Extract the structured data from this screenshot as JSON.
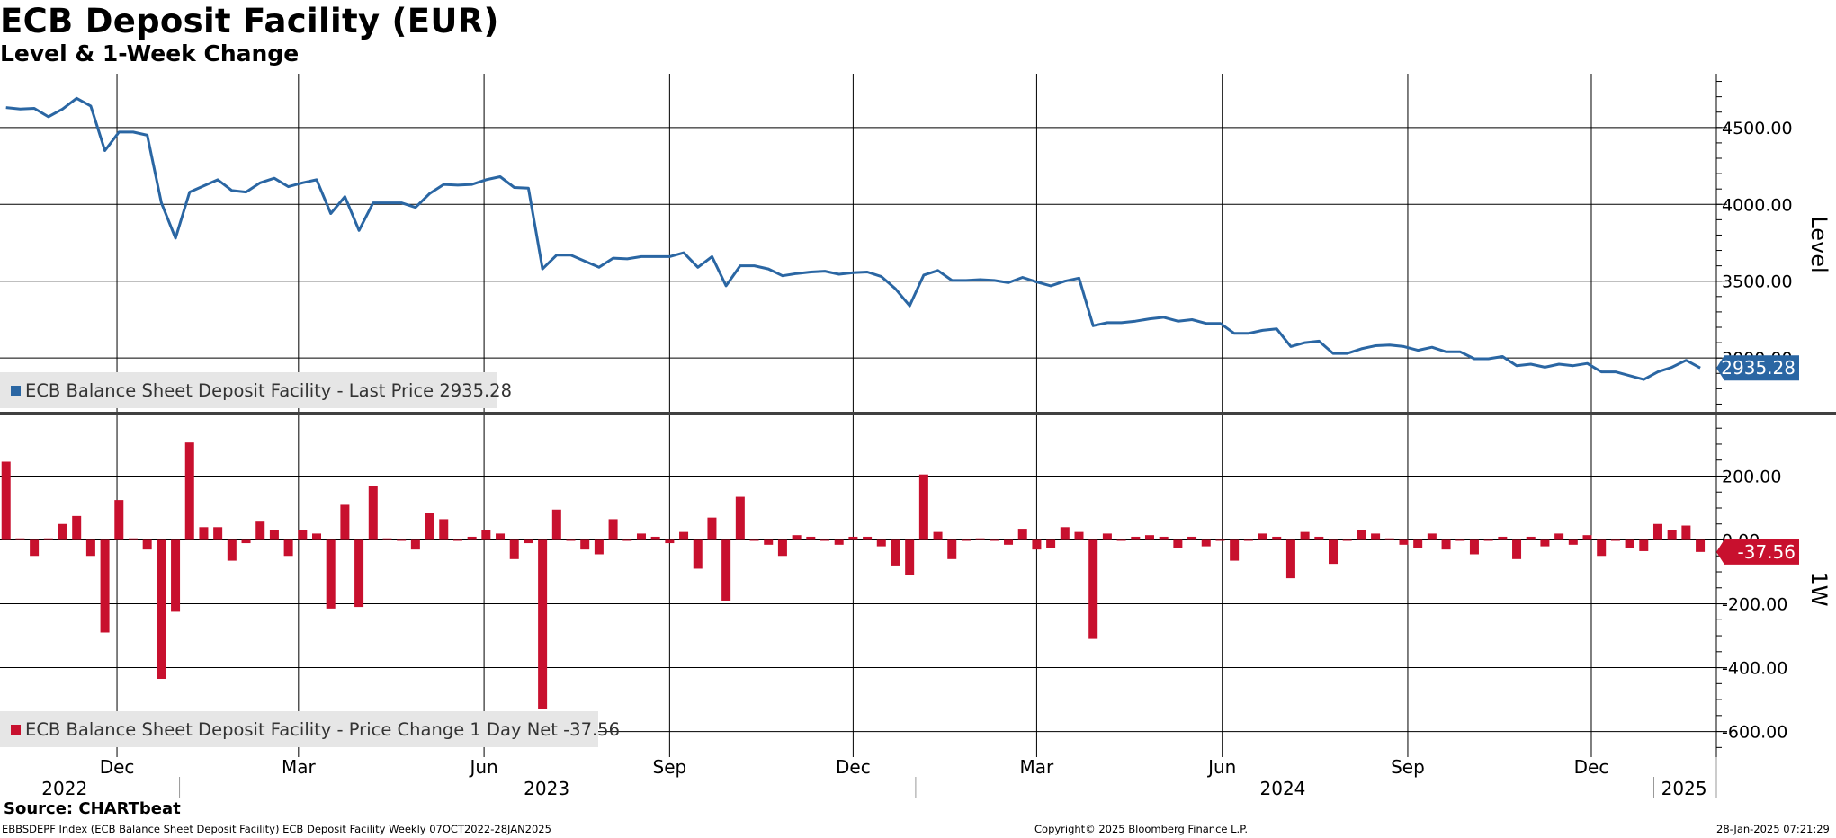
{
  "title": "ECB Deposit Facility (EUR)",
  "subtitle": "Level & 1-Week Change",
  "source": "Source: CHARTbeat",
  "footer": {
    "left": "EBBSDEPF Index (ECB Balance Sheet Deposit Facility) ECB Deposit Facility  Weekly 07OCT2022-28JAN2025",
    "center": "Copyright© 2025 Bloomberg Finance L.P.",
    "right": "28-Jan-2025 07:21:29"
  },
  "colors": {
    "level": "#2a66a3",
    "change": "#c8102e",
    "grid": "#000000",
    "divider": "#404040"
  },
  "chart_data": [
    {
      "type": "line",
      "ylabel": "Level",
      "ylim": [
        2650,
        4850
      ],
      "yticks": [
        3000,
        3500,
        4000,
        4500
      ],
      "ytick_labels": [
        "3000.00",
        "3500.00",
        "4000.00",
        "4500.00"
      ],
      "legend": "ECB Balance Sheet Deposit Facility - Last Price 2935.28",
      "last_value_label": "2935.28",
      "x": [
        "2022-10-07",
        "2022-10-14",
        "2022-10-21",
        "2022-10-28",
        "2022-11-04",
        "2022-11-11",
        "2022-11-18",
        "2022-11-25",
        "2022-12-02",
        "2022-12-09",
        "2022-12-16",
        "2022-12-23",
        "2022-12-30",
        "2023-01-06",
        "2023-01-13",
        "2023-01-20",
        "2023-01-27",
        "2023-02-03",
        "2023-02-10",
        "2023-02-17",
        "2023-02-24",
        "2023-03-03",
        "2023-03-10",
        "2023-03-17",
        "2023-03-24",
        "2023-03-31",
        "2023-04-07",
        "2023-04-14",
        "2023-04-21",
        "2023-04-28",
        "2023-05-05",
        "2023-05-12",
        "2023-05-19",
        "2023-05-26",
        "2023-06-02",
        "2023-06-09",
        "2023-06-16",
        "2023-06-23",
        "2023-06-30",
        "2023-07-07",
        "2023-07-14",
        "2023-07-21",
        "2023-07-28",
        "2023-08-04",
        "2023-08-11",
        "2023-08-18",
        "2023-08-25",
        "2023-09-01",
        "2023-09-08",
        "2023-09-15",
        "2023-09-22",
        "2023-09-29",
        "2023-10-06",
        "2023-10-13",
        "2023-10-20",
        "2023-10-27",
        "2023-11-03",
        "2023-11-10",
        "2023-11-17",
        "2023-11-24",
        "2023-12-01",
        "2023-12-08",
        "2023-12-15",
        "2023-12-22",
        "2023-12-29",
        "2024-01-05",
        "2024-01-12",
        "2024-01-19",
        "2024-01-26",
        "2024-02-02",
        "2024-02-09",
        "2024-02-16",
        "2024-02-23",
        "2024-03-01",
        "2024-03-08",
        "2024-03-15",
        "2024-03-22",
        "2024-03-29",
        "2024-04-05",
        "2024-04-12",
        "2024-04-19",
        "2024-04-26",
        "2024-05-03",
        "2024-05-10",
        "2024-05-17",
        "2024-05-24",
        "2024-05-31",
        "2024-06-07",
        "2024-06-14",
        "2024-06-21",
        "2024-06-28",
        "2024-07-05",
        "2024-07-12",
        "2024-07-19",
        "2024-07-26",
        "2024-08-02",
        "2024-08-09",
        "2024-08-16",
        "2024-08-23",
        "2024-08-30",
        "2024-09-06",
        "2024-09-13",
        "2024-09-20",
        "2024-09-27",
        "2024-10-04",
        "2024-10-11",
        "2024-10-18",
        "2024-10-25",
        "2024-11-01",
        "2024-11-08",
        "2024-11-15",
        "2024-11-22",
        "2024-11-29",
        "2024-12-06",
        "2024-12-13",
        "2024-12-20",
        "2024-12-27",
        "2025-01-03",
        "2025-01-10",
        "2025-01-17",
        "2025-01-24"
      ],
      "values": [
        4630,
        4620,
        4625,
        4570,
        4620,
        4690,
        4640,
        4350,
        4470,
        4470,
        4450,
        4010,
        3780,
        4080,
        4120,
        4160,
        4090,
        4080,
        4140,
        4170,
        4115,
        4140,
        4160,
        3940,
        4050,
        3830,
        4010,
        4010,
        4010,
        3980,
        4070,
        4130,
        4125,
        4130,
        4160,
        4180,
        4110,
        4105,
        3580,
        3670,
        3670,
        3630,
        3590,
        3650,
        3645,
        3660,
        3660,
        3660,
        3685,
        3590,
        3660,
        3470,
        3600,
        3600,
        3580,
        3535,
        3550,
        3560,
        3565,
        3545,
        3555,
        3560,
        3530,
        3450,
        3340,
        3540,
        3570,
        3505,
        3505,
        3510,
        3505,
        3490,
        3525,
        3495,
        3470,
        3500,
        3520,
        3210,
        3230,
        3230,
        3240,
        3255,
        3265,
        3240,
        3250,
        3225,
        3225,
        3160,
        3160,
        3180,
        3190,
        3075,
        3100,
        3110,
        3030,
        3030,
        3060,
        3080,
        3085,
        3075,
        3050,
        3070,
        3040,
        3040,
        2995,
        2995,
        3010,
        2950,
        2960,
        2940,
        2960,
        2950,
        2965,
        2910,
        2910,
        2885,
        2860,
        2910,
        2940,
        2985,
        2935.28
      ]
    },
    {
      "type": "bar",
      "ylabel": "1W",
      "ylim": [
        -680,
        390
      ],
      "yticks": [
        -600,
        -400,
        -200,
        0,
        200
      ],
      "ytick_labels": [
        "-600.00",
        "-400.00",
        "-200.00",
        "0.00",
        "200.00"
      ],
      "legend": "ECB Balance Sheet Deposit Facility - Price Change 1 Day Net -37.56",
      "last_value_label": "-37.56",
      "x": [
        "2022-10-07",
        "2022-10-14",
        "2022-10-21",
        "2022-10-28",
        "2022-11-04",
        "2022-11-11",
        "2022-11-18",
        "2022-11-25",
        "2022-12-02",
        "2022-12-09",
        "2022-12-16",
        "2022-12-23",
        "2022-12-30",
        "2023-01-06",
        "2023-01-13",
        "2023-01-20",
        "2023-01-27",
        "2023-02-03",
        "2023-02-10",
        "2023-02-17",
        "2023-02-24",
        "2023-03-03",
        "2023-03-10",
        "2023-03-17",
        "2023-03-24",
        "2023-03-31",
        "2023-04-07",
        "2023-04-14",
        "2023-04-21",
        "2023-04-28",
        "2023-05-05",
        "2023-05-12",
        "2023-05-19",
        "2023-05-26",
        "2023-06-02",
        "2023-06-09",
        "2023-06-16",
        "2023-06-23",
        "2023-06-30",
        "2023-07-07",
        "2023-07-14",
        "2023-07-21",
        "2023-07-28",
        "2023-08-04",
        "2023-08-11",
        "2023-08-18",
        "2023-08-25",
        "2023-09-01",
        "2023-09-08",
        "2023-09-15",
        "2023-09-22",
        "2023-09-29",
        "2023-10-06",
        "2023-10-13",
        "2023-10-20",
        "2023-10-27",
        "2023-11-03",
        "2023-11-10",
        "2023-11-17",
        "2023-11-24",
        "2023-12-01",
        "2023-12-08",
        "2023-12-15",
        "2023-12-22",
        "2023-12-29",
        "2024-01-05",
        "2024-01-12",
        "2024-01-19",
        "2024-01-26",
        "2024-02-02",
        "2024-02-09",
        "2024-02-16",
        "2024-02-23",
        "2024-03-01",
        "2024-03-08",
        "2024-03-15",
        "2024-03-22",
        "2024-03-29",
        "2024-04-05",
        "2024-04-12",
        "2024-04-19",
        "2024-04-26",
        "2024-05-03",
        "2024-05-10",
        "2024-05-17",
        "2024-05-24",
        "2024-05-31",
        "2024-06-07",
        "2024-06-14",
        "2024-06-21",
        "2024-06-28",
        "2024-07-05",
        "2024-07-12",
        "2024-07-19",
        "2024-07-26",
        "2024-08-02",
        "2024-08-09",
        "2024-08-16",
        "2024-08-23",
        "2024-08-30",
        "2024-09-06",
        "2024-09-13",
        "2024-09-20",
        "2024-09-27",
        "2024-10-04",
        "2024-10-11",
        "2024-10-18",
        "2024-10-25",
        "2024-11-01",
        "2024-11-08",
        "2024-11-15",
        "2024-11-22",
        "2024-11-29",
        "2024-12-06",
        "2024-12-13",
        "2024-12-20",
        "2024-12-27",
        "2025-01-03",
        "2025-01-10",
        "2025-01-17",
        "2025-01-24"
      ],
      "values": [
        245,
        5,
        -50,
        5,
        50,
        75,
        -50,
        -290,
        125,
        5,
        -30,
        -435,
        -225,
        305,
        40,
        40,
        -65,
        -10,
        60,
        30,
        -50,
        30,
        20,
        -215,
        110,
        -210,
        170,
        5,
        0,
        -30,
        85,
        65,
        0,
        10,
        30,
        20,
        -60,
        -10,
        -530,
        95,
        0,
        -30,
        -45,
        65,
        0,
        20,
        10,
        -10,
        25,
        -90,
        70,
        -190,
        135,
        0,
        -15,
        -50,
        15,
        10,
        0,
        -15,
        10,
        10,
        -20,
        -80,
        -110,
        205,
        25,
        -60,
        0,
        5,
        0,
        -15,
        35,
        -30,
        -25,
        40,
        25,
        -310,
        20,
        0,
        10,
        15,
        10,
        -25,
        10,
        -20,
        0,
        -65,
        0,
        20,
        10,
        -120,
        25,
        10,
        -75,
        0,
        30,
        20,
        5,
        -15,
        -25,
        20,
        -30,
        0,
        -45,
        0,
        10,
        -60,
        10,
        -20,
        20,
        -15,
        15,
        -50,
        0,
        -25,
        -35,
        50,
        30,
        45,
        -37.56
      ]
    }
  ],
  "x_axis": {
    "month_labels": [
      {
        "date": "2022-12-01",
        "label": "Dec"
      },
      {
        "date": "2023-03-01",
        "label": "Mar"
      },
      {
        "date": "2023-06-01",
        "label": "Jun"
      },
      {
        "date": "2023-09-01",
        "label": "Sep"
      },
      {
        "date": "2023-12-01",
        "label": "Dec"
      },
      {
        "date": "2024-03-01",
        "label": "Mar"
      },
      {
        "date": "2024-06-01",
        "label": "Jun"
      },
      {
        "date": "2024-09-01",
        "label": "Sep"
      },
      {
        "date": "2024-12-01",
        "label": "Dec"
      }
    ],
    "year_labels": [
      {
        "date": "2022-11-05",
        "label": "2022"
      },
      {
        "date": "2023-07-02",
        "label": "2023"
      },
      {
        "date": "2024-07-01",
        "label": "2024"
      },
      {
        "date": "2025-01-16",
        "label": "2025"
      }
    ],
    "year_separators": [
      "2023-01-01",
      "2024-01-01",
      "2025-01-01"
    ]
  }
}
